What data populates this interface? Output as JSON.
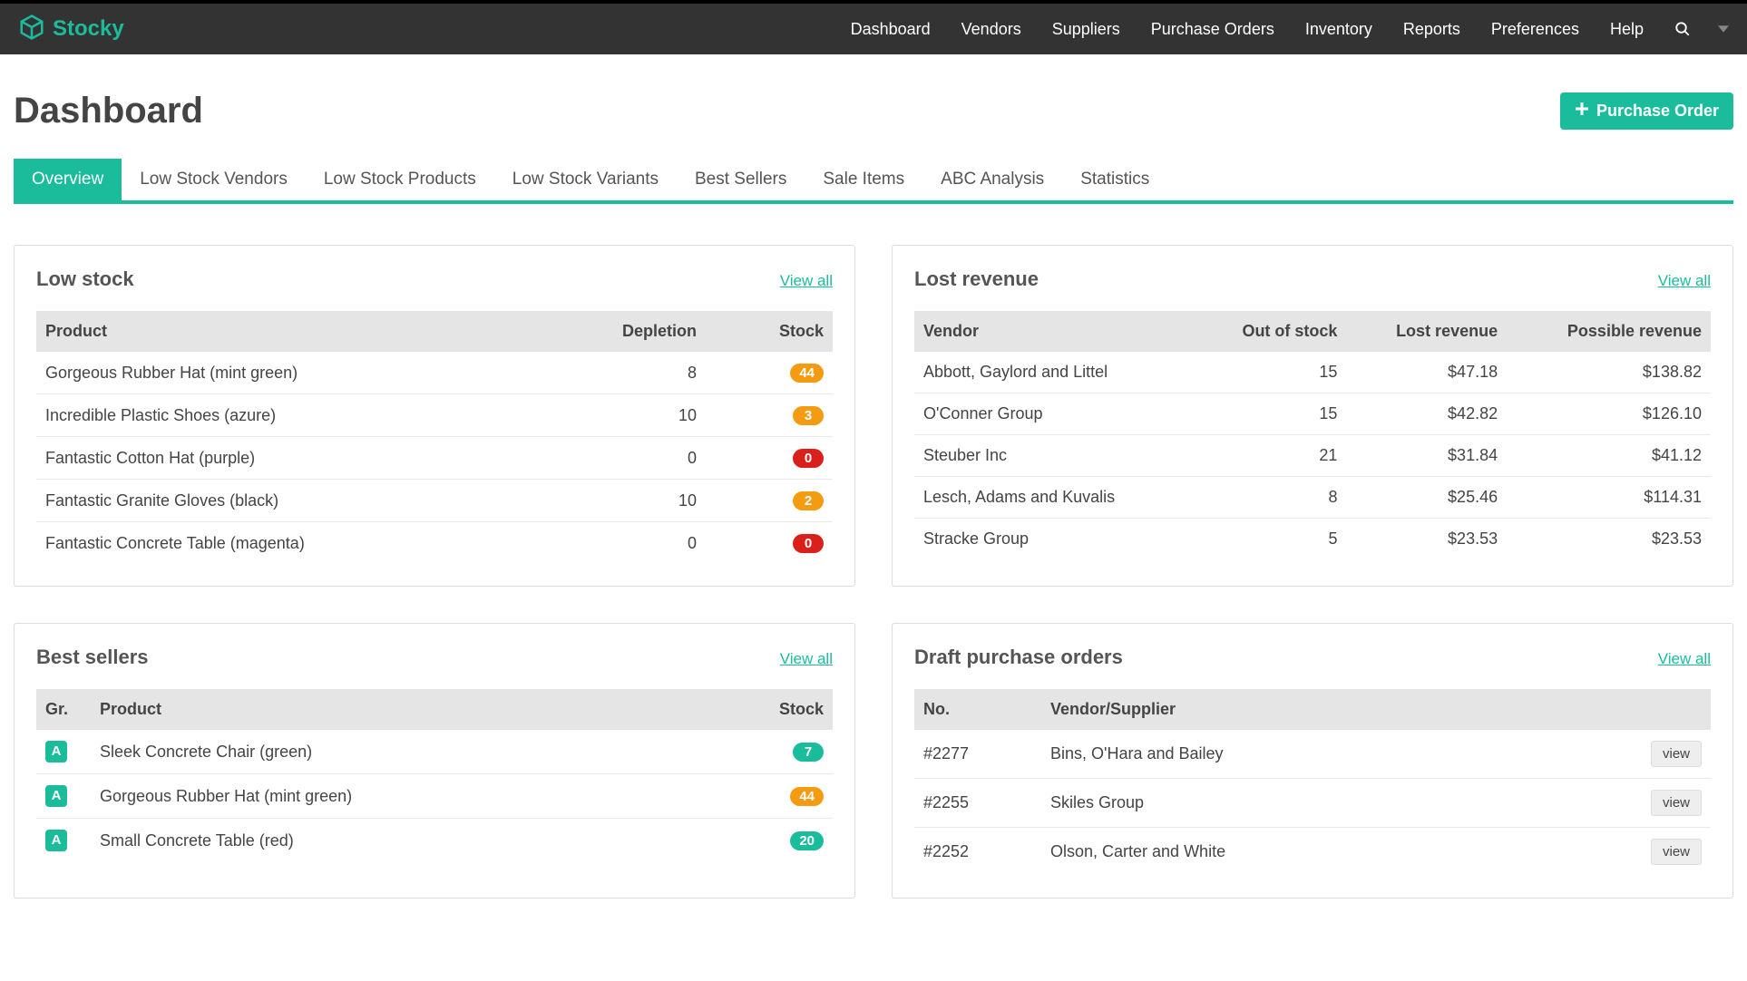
{
  "brand": {
    "name": "Stocky",
    "color": "#1abc9c"
  },
  "nav": {
    "items": [
      "Dashboard",
      "Vendors",
      "Suppliers",
      "Purchase Orders",
      "Inventory",
      "Reports",
      "Preferences",
      "Help"
    ]
  },
  "page": {
    "title": "Dashboard",
    "primary_button": "Purchase Order"
  },
  "tabs": [
    "Overview",
    "Low Stock Vendors",
    "Low Stock Products",
    "Low Stock Variants",
    "Best Sellers",
    "Sale Items",
    "ABC Analysis",
    "Statistics"
  ],
  "active_tab": 0,
  "view_all_label": "View all",
  "panels": {
    "low_stock": {
      "title": "Low stock",
      "columns": [
        "Product",
        "Depletion",
        "Stock"
      ],
      "rows": [
        {
          "product": "Gorgeous Rubber Hat (mint green)",
          "depletion": "8",
          "stock": "44",
          "badge_color": "#f39c12"
        },
        {
          "product": "Incredible Plastic Shoes (azure)",
          "depletion": "10",
          "stock": "3",
          "badge_color": "#f39c12"
        },
        {
          "product": "Fantastic Cotton Hat (purple)",
          "depletion": "0",
          "stock": "0",
          "badge_color": "#d9201b"
        },
        {
          "product": "Fantastic Granite Gloves (black)",
          "depletion": "10",
          "stock": "2",
          "badge_color": "#f39c12"
        },
        {
          "product": "Fantastic Concrete Table (magenta)",
          "depletion": "0",
          "stock": "0",
          "badge_color": "#d9201b"
        }
      ]
    },
    "lost_revenue": {
      "title": "Lost revenue",
      "columns": [
        "Vendor",
        "Out of stock",
        "Lost revenue",
        "Possible revenue"
      ],
      "rows": [
        {
          "vendor": "Abbott, Gaylord and Littel",
          "out_of_stock": "15",
          "lost": "$47.18",
          "possible": "$138.82"
        },
        {
          "vendor": "O'Conner Group",
          "out_of_stock": "15",
          "lost": "$42.82",
          "possible": "$126.10"
        },
        {
          "vendor": "Steuber Inc",
          "out_of_stock": "21",
          "lost": "$31.84",
          "possible": "$41.12"
        },
        {
          "vendor": "Lesch, Adams and Kuvalis",
          "out_of_stock": "8",
          "lost": "$25.46",
          "possible": "$114.31"
        },
        {
          "vendor": "Stracke Group",
          "out_of_stock": "5",
          "lost": "$23.53",
          "possible": "$23.53"
        }
      ]
    },
    "best_sellers": {
      "title": "Best sellers",
      "columns": [
        "Gr.",
        "Product",
        "Stock"
      ],
      "rows": [
        {
          "grade": "A",
          "product": "Sleek Concrete Chair (green)",
          "stock": "7",
          "badge_color": "#1abc9c"
        },
        {
          "grade": "A",
          "product": "Gorgeous Rubber Hat (mint green)",
          "stock": "44",
          "badge_color": "#f39c12"
        },
        {
          "grade": "A",
          "product": "Small Concrete Table (red)",
          "stock": "20",
          "badge_color": "#1abc9c"
        }
      ]
    },
    "draft_po": {
      "title": "Draft purchase orders",
      "columns": [
        "No.",
        "Vendor/Supplier",
        ""
      ],
      "view_button_label": "view",
      "rows": [
        {
          "no": "#2277",
          "vendor": "Bins, O'Hara and Bailey"
        },
        {
          "no": "#2255",
          "vendor": "Skiles Group"
        },
        {
          "no": "#2252",
          "vendor": "Olson, Carter and White"
        }
      ]
    }
  },
  "colors": {
    "accent": "#1abc9c",
    "topnav_bg": "#333333",
    "badge_orange": "#f39c12",
    "badge_red": "#d9201b",
    "badge_green": "#1abc9c",
    "table_header_bg": "#e5e5e5"
  }
}
